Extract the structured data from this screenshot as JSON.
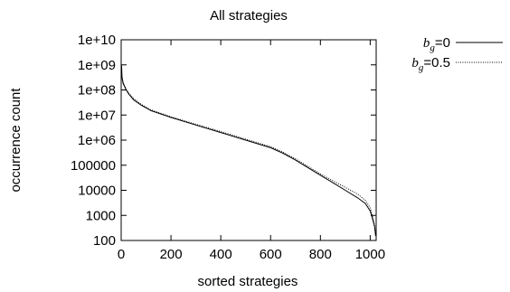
{
  "chart_data": {
    "type": "line",
    "title": "All strategies",
    "xlabel": "sorted strategies",
    "ylabel": "occurrence count",
    "xlim": [
      0,
      1024
    ],
    "ylim": [
      100,
      10000000000
    ],
    "yscale": "log",
    "grid": false,
    "legend_position": "outside-right-top",
    "x_ticks": [
      {
        "value": 0,
        "label": "0"
      },
      {
        "value": 200,
        "label": "200"
      },
      {
        "value": 400,
        "label": "400"
      },
      {
        "value": 600,
        "label": "600"
      },
      {
        "value": 800,
        "label": "800"
      },
      {
        "value": 1000,
        "label": "1000"
      }
    ],
    "y_ticks": [
      {
        "value": 100,
        "label": "100"
      },
      {
        "value": 1000,
        "label": "1000"
      },
      {
        "value": 10000,
        "label": "10000"
      },
      {
        "value": 100000,
        "label": "100000"
      },
      {
        "value": 1000000,
        "label": "1e+06"
      },
      {
        "value": 10000000,
        "label": "1e+07"
      },
      {
        "value": 100000000,
        "label": "1e+08"
      },
      {
        "value": 1000000000,
        "label": "1e+09"
      },
      {
        "value": 10000000000,
        "label": "1e+10"
      }
    ],
    "series": [
      {
        "name": "b_g=0",
        "legend_b": "b",
        "legend_sub": "g",
        "legend_rest": "=0",
        "style": "solid",
        "x": [
          1,
          2,
          3,
          5,
          8,
          12,
          20,
          30,
          50,
          80,
          120,
          200,
          300,
          400,
          500,
          600,
          650,
          700,
          750,
          800,
          850,
          900,
          950,
          980,
          1000,
          1010,
          1018,
          1022
        ],
        "y": [
          1000000000,
          700000000,
          350000000,
          250000000,
          180000000,
          150000000,
          100000000,
          70000000,
          40000000,
          25000000,
          15000000,
          8000000,
          4000000,
          2000000,
          1000000,
          500000,
          300000,
          160000,
          80000,
          40000,
          20000,
          10000,
          5000,
          3000,
          1500,
          700,
          350,
          150
        ]
      },
      {
        "name": "b_g=0.5",
        "legend_b": "b",
        "legend_sub": "g",
        "legend_rest": "=0.5",
        "style": "dotted",
        "x": [
          1,
          2,
          3,
          5,
          8,
          12,
          20,
          30,
          50,
          80,
          120,
          200,
          300,
          400,
          500,
          600,
          650,
          700,
          750,
          800,
          850,
          900,
          950,
          980,
          1000,
          1010,
          1018,
          1022
        ],
        "y": [
          800000000,
          600000000,
          400000000,
          280000000,
          200000000,
          160000000,
          110000000,
          75000000,
          45000000,
          27000000,
          16000000,
          8500000,
          4300000,
          2200000,
          1100000,
          550000,
          330000,
          180000,
          90000,
          45000,
          24000,
          13000,
          7000,
          4000,
          2000,
          900,
          400,
          180
        ]
      }
    ]
  }
}
